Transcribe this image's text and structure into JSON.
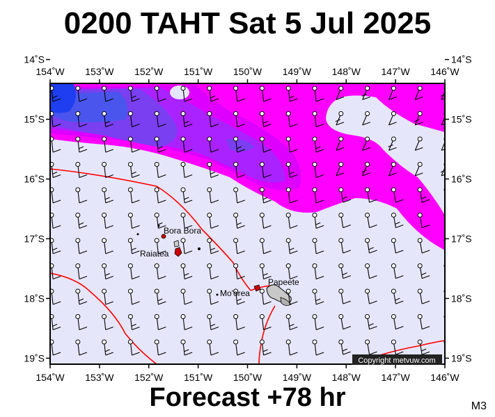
{
  "title": "0200 TAHT Sat 5 Jul 2025",
  "footer": "Forecast +78 hr",
  "model": "M3",
  "copyright": "Copyright metvuw.com",
  "map": {
    "lon_range": [
      -154,
      -146
    ],
    "lat_range": [
      -19.1,
      -14.4
    ],
    "lon_ticks": [
      "154˚W",
      "153˚W",
      "152˚W",
      "151˚W",
      "150˚W",
      "149˚W",
      "148˚W",
      "147˚W",
      "146˚W"
    ],
    "lat_ticks": [
      "14˚S",
      "15˚S",
      "16˚S",
      "17˚S",
      "18˚S",
      "19˚S"
    ],
    "background_color": "#e6e6fa",
    "precip_colors": [
      "#ff00ff",
      "#dd00ff",
      "#aa22ff",
      "#7a3ff0",
      "#4a55ee",
      "#1e3ef0"
    ],
    "front_color": "#ff0000",
    "wind_barbs": "on",
    "places": [
      {
        "name": "Bora Bora",
        "lon": -151.75,
        "lat": -16.5
      },
      {
        "name": "Raiatea",
        "lon": -151.45,
        "lat": -16.8
      },
      {
        "name": "Mo'orea",
        "lon": -149.85,
        "lat": -17.5
      },
      {
        "name": "Papeete",
        "lon": -149.57,
        "lat": -17.53
      }
    ]
  }
}
